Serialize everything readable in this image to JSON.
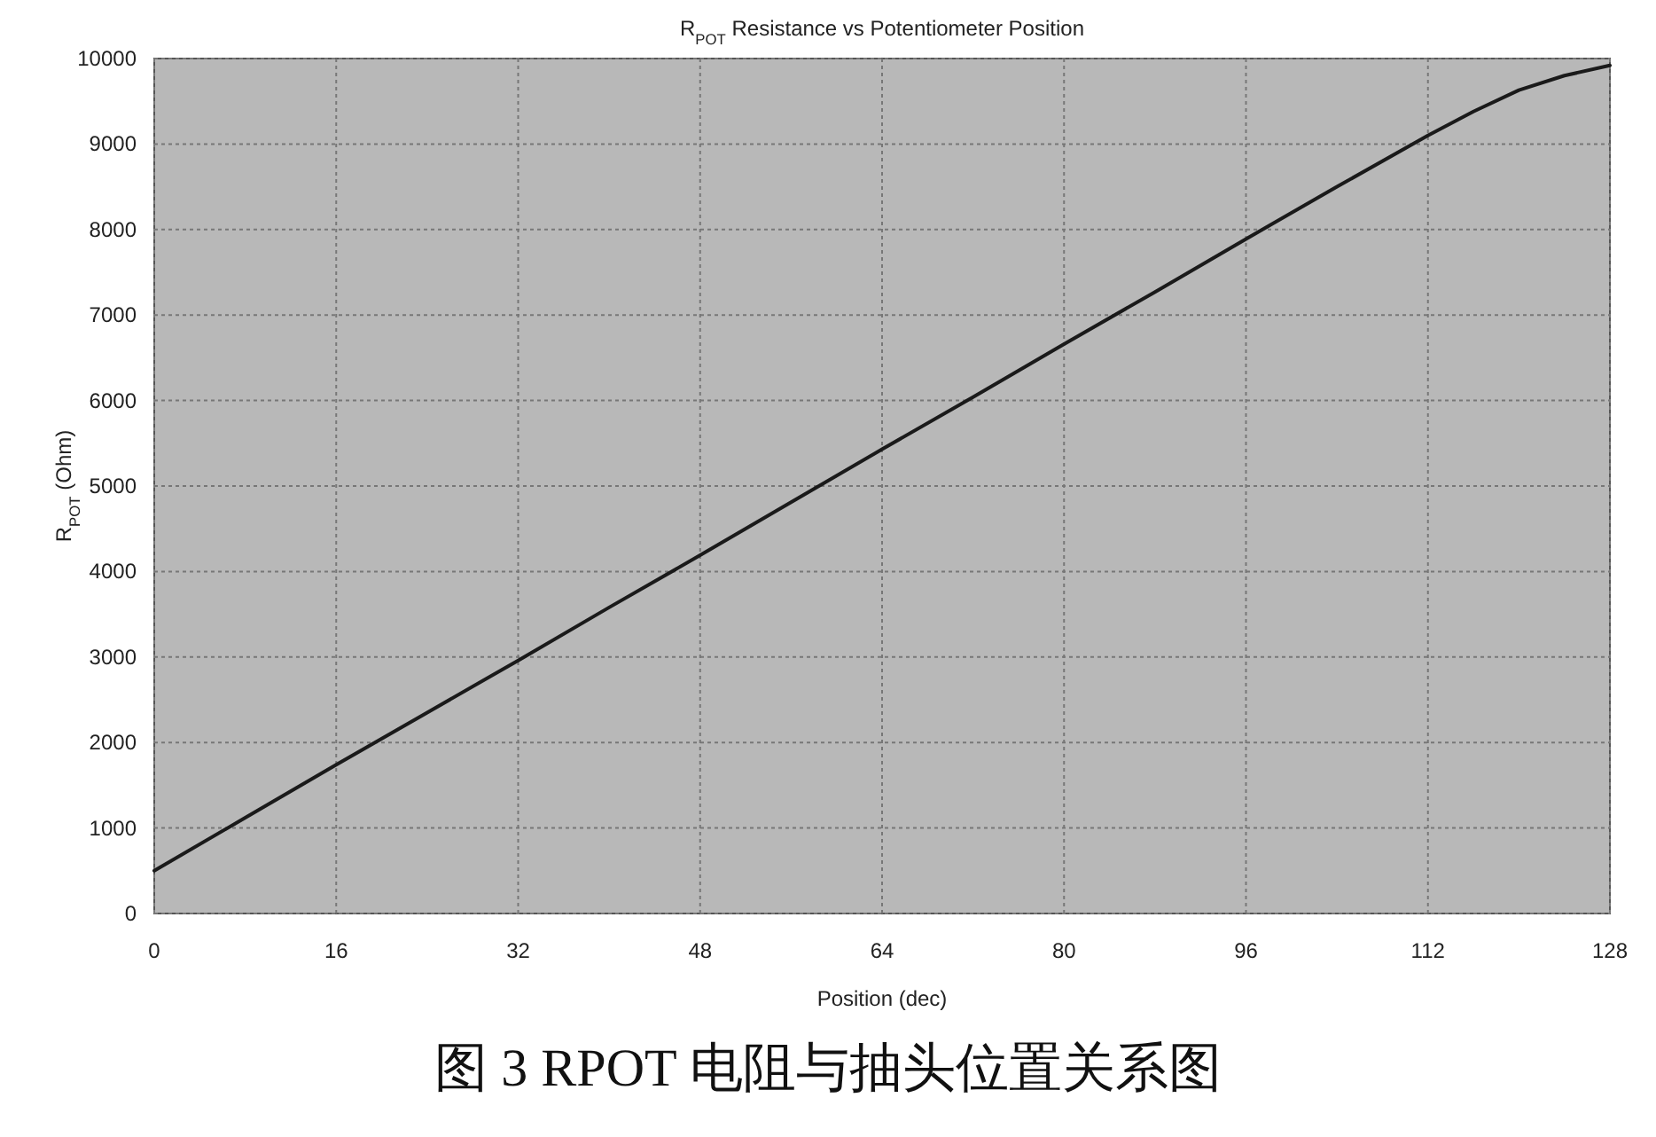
{
  "chart_data": {
    "type": "line",
    "title": "R$_{POT}$ Resistance vs Potentiometer Position",
    "xlabel": "Position (dec)",
    "ylabel": "R$_{POT}$ (Ohm)",
    "annotations": [
      "图 3  RPOT 电阻与抽头位置关系图"
    ],
    "x": [
      0,
      8,
      16,
      24,
      32,
      40,
      48,
      56,
      64,
      72,
      80,
      88,
      96,
      104,
      112,
      116,
      120,
      124,
      128
    ],
    "series": [
      {
        "color": "#1a1a1a",
        "values": [
          500,
          1120,
          1740,
          2350,
          2960,
          3580,
          4190,
          4810,
          5430,
          6040,
          6660,
          7270,
          7890,
          8500,
          9100,
          9380,
          9630,
          9800,
          9920
        ]
      }
    ],
    "xlim": [
      0,
      128
    ],
    "ylim": [
      0,
      10000
    ],
    "xticks": [
      0,
      16,
      32,
      48,
      64,
      80,
      96,
      112,
      128
    ],
    "yticks": [
      0,
      1000,
      2000,
      3000,
      4000,
      5000,
      6000,
      7000,
      8000,
      9000,
      10000
    ],
    "grid": true,
    "marker": "none",
    "line_style": "solid"
  }
}
